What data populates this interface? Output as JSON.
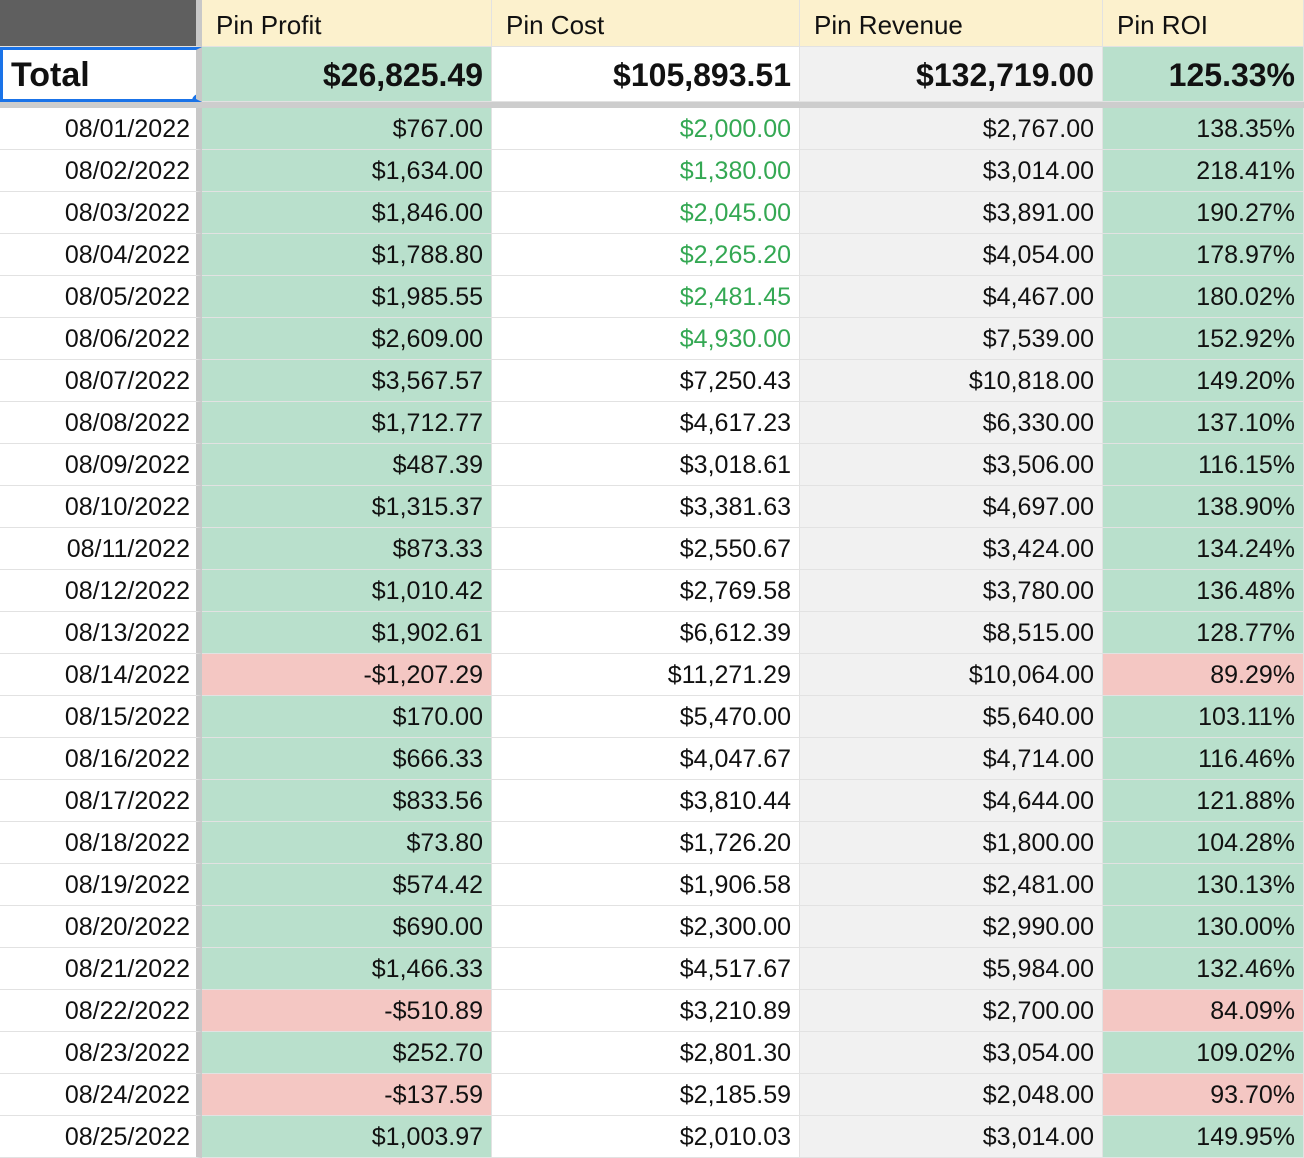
{
  "columns": [
    "Pin Profit",
    "Pin Cost",
    "Pin Revenue",
    "Pin ROI"
  ],
  "total": {
    "label": "Total",
    "profit": "$26,825.49",
    "cost": "$105,893.51",
    "revenue": "$132,719.00",
    "roi": "125.33%"
  },
  "colors": {
    "positive_fill": "#b9e0cc",
    "negative_fill": "#f4c7c3",
    "header_fill": "#fcf1cd",
    "revenue_fill": "#f1f1f1",
    "green_text": "#34a853",
    "selection": "#1a73e8"
  },
  "rows": [
    {
      "date": "08/01/2022",
      "profit": "$767.00",
      "cost": "$2,000.00",
      "revenue": "$2,767.00",
      "roi": "138.35%",
      "status": "positive",
      "cost_green": true
    },
    {
      "date": "08/02/2022",
      "profit": "$1,634.00",
      "cost": "$1,380.00",
      "revenue": "$3,014.00",
      "roi": "218.41%",
      "status": "positive",
      "cost_green": true
    },
    {
      "date": "08/03/2022",
      "profit": "$1,846.00",
      "cost": "$2,045.00",
      "revenue": "$3,891.00",
      "roi": "190.27%",
      "status": "positive",
      "cost_green": true
    },
    {
      "date": "08/04/2022",
      "profit": "$1,788.80",
      "cost": "$2,265.20",
      "revenue": "$4,054.00",
      "roi": "178.97%",
      "status": "positive",
      "cost_green": true
    },
    {
      "date": "08/05/2022",
      "profit": "$1,985.55",
      "cost": "$2,481.45",
      "revenue": "$4,467.00",
      "roi": "180.02%",
      "status": "positive",
      "cost_green": true
    },
    {
      "date": "08/06/2022",
      "profit": "$2,609.00",
      "cost": "$4,930.00",
      "revenue": "$7,539.00",
      "roi": "152.92%",
      "status": "positive",
      "cost_green": true
    },
    {
      "date": "08/07/2022",
      "profit": "$3,567.57",
      "cost": "$7,250.43",
      "revenue": "$10,818.00",
      "roi": "149.20%",
      "status": "positive",
      "cost_green": false
    },
    {
      "date": "08/08/2022",
      "profit": "$1,712.77",
      "cost": "$4,617.23",
      "revenue": "$6,330.00",
      "roi": "137.10%",
      "status": "positive",
      "cost_green": false
    },
    {
      "date": "08/09/2022",
      "profit": "$487.39",
      "cost": "$3,018.61",
      "revenue": "$3,506.00",
      "roi": "116.15%",
      "status": "positive",
      "cost_green": false
    },
    {
      "date": "08/10/2022",
      "profit": "$1,315.37",
      "cost": "$3,381.63",
      "revenue": "$4,697.00",
      "roi": "138.90%",
      "status": "positive",
      "cost_green": false
    },
    {
      "date": "08/11/2022",
      "profit": "$873.33",
      "cost": "$2,550.67",
      "revenue": "$3,424.00",
      "roi": "134.24%",
      "status": "positive",
      "cost_green": false
    },
    {
      "date": "08/12/2022",
      "profit": "$1,010.42",
      "cost": "$2,769.58",
      "revenue": "$3,780.00",
      "roi": "136.48%",
      "status": "positive",
      "cost_green": false
    },
    {
      "date": "08/13/2022",
      "profit": "$1,902.61",
      "cost": "$6,612.39",
      "revenue": "$8,515.00",
      "roi": "128.77%",
      "status": "positive",
      "cost_green": false
    },
    {
      "date": "08/14/2022",
      "profit": "-$1,207.29",
      "cost": "$11,271.29",
      "revenue": "$10,064.00",
      "roi": "89.29%",
      "status": "negative",
      "cost_green": false
    },
    {
      "date": "08/15/2022",
      "profit": "$170.00",
      "cost": "$5,470.00",
      "revenue": "$5,640.00",
      "roi": "103.11%",
      "status": "positive",
      "cost_green": false
    },
    {
      "date": "08/16/2022",
      "profit": "$666.33",
      "cost": "$4,047.67",
      "revenue": "$4,714.00",
      "roi": "116.46%",
      "status": "positive",
      "cost_green": false
    },
    {
      "date": "08/17/2022",
      "profit": "$833.56",
      "cost": "$3,810.44",
      "revenue": "$4,644.00",
      "roi": "121.88%",
      "status": "positive",
      "cost_green": false
    },
    {
      "date": "08/18/2022",
      "profit": "$73.80",
      "cost": "$1,726.20",
      "revenue": "$1,800.00",
      "roi": "104.28%",
      "status": "positive",
      "cost_green": false
    },
    {
      "date": "08/19/2022",
      "profit": "$574.42",
      "cost": "$1,906.58",
      "revenue": "$2,481.00",
      "roi": "130.13%",
      "status": "positive",
      "cost_green": false
    },
    {
      "date": "08/20/2022",
      "profit": "$690.00",
      "cost": "$2,300.00",
      "revenue": "$2,990.00",
      "roi": "130.00%",
      "status": "positive",
      "cost_green": false
    },
    {
      "date": "08/21/2022",
      "profit": "$1,466.33",
      "cost": "$4,517.67",
      "revenue": "$5,984.00",
      "roi": "132.46%",
      "status": "positive",
      "cost_green": false
    },
    {
      "date": "08/22/2022",
      "profit": "-$510.89",
      "cost": "$3,210.89",
      "revenue": "$2,700.00",
      "roi": "84.09%",
      "status": "negative",
      "cost_green": false
    },
    {
      "date": "08/23/2022",
      "profit": "$252.70",
      "cost": "$2,801.30",
      "revenue": "$3,054.00",
      "roi": "109.02%",
      "status": "positive",
      "cost_green": false
    },
    {
      "date": "08/24/2022",
      "profit": "-$137.59",
      "cost": "$2,185.59",
      "revenue": "$2,048.00",
      "roi": "93.70%",
      "status": "negative",
      "cost_green": false
    },
    {
      "date": "08/25/2022",
      "profit": "$1,003.97",
      "cost": "$2,010.03",
      "revenue": "$3,014.00",
      "roi": "149.95%",
      "status": "positive",
      "cost_green": false
    }
  ]
}
